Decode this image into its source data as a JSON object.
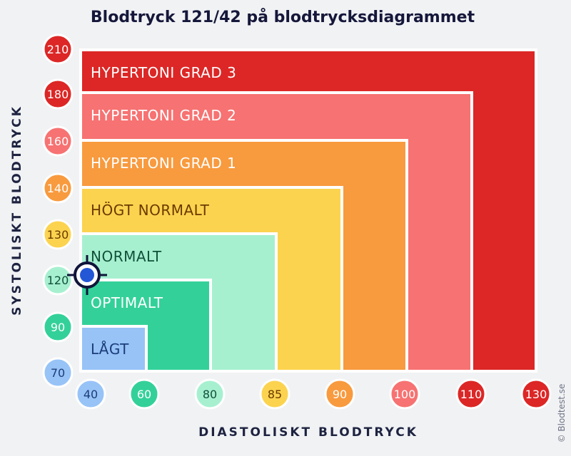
{
  "title": "Blodtryck 121/42 på blodtrycksdiagrammet",
  "credit": "© Blodtest.se",
  "chart_data": {
    "type": "area",
    "xlabel": "DIASTOLISKT BLODTRYCK",
    "ylabel": "SYSTOLISKT BLODTRYCK",
    "x_ticks": [
      {
        "label": "40",
        "color": "#97c3f7",
        "text": "#1d3d7a"
      },
      {
        "label": "60",
        "color": "#33d199",
        "text": "#ffffff"
      },
      {
        "label": "80",
        "color": "#a6f0d0",
        "text": "#11503a"
      },
      {
        "label": "85",
        "color": "#fcd34f",
        "text": "#6b3a00"
      },
      {
        "label": "90",
        "color": "#f89a3e",
        "text": "#ffffff"
      },
      {
        "label": "100",
        "color": "#f77272",
        "text": "#ffffff"
      },
      {
        "label": "110",
        "color": "#dc2726",
        "text": "#ffffff"
      },
      {
        "label": "130",
        "color": "#dc2726",
        "text": "#ffffff"
      }
    ],
    "y_ticks": [
      {
        "label": "210",
        "color": "#dc2726",
        "text": "#ffffff"
      },
      {
        "label": "180",
        "color": "#dc2726",
        "text": "#ffffff"
      },
      {
        "label": "160",
        "color": "#f77272",
        "text": "#ffffff"
      },
      {
        "label": "140",
        "color": "#f89a3e",
        "text": "#ffffff"
      },
      {
        "label": "130",
        "color": "#fcd34f",
        "text": "#6b3a00"
      },
      {
        "label": "120",
        "color": "#a6f0d0",
        "text": "#11503a"
      },
      {
        "label": "90",
        "color": "#33d199",
        "text": "#ffffff"
      },
      {
        "label": "70",
        "color": "#97c3f7",
        "text": "#1d3d7a"
      }
    ],
    "zones": [
      {
        "label": "HYPERTONI GRAD 3",
        "x_max": "130",
        "y_max": "210",
        "color": "#dc2726",
        "text": "#ffffff"
      },
      {
        "label": "HYPERTONI GRAD 2",
        "x_max": "110",
        "y_max": "180",
        "color": "#f77272",
        "text": "#ffffff"
      },
      {
        "label": "HYPERTONI GRAD 1",
        "x_max": "100",
        "y_max": "160",
        "color": "#f89a3e",
        "text": "#ffffff"
      },
      {
        "label": "HÖGT NORMALT",
        "x_max": "90",
        "y_max": "140",
        "color": "#fcd34f",
        "text": "#6b3a00"
      },
      {
        "label": "NORMALT",
        "x_max": "85",
        "y_max": "130",
        "color": "#a6f0d0",
        "text": "#11503a"
      },
      {
        "label": "OPTIMALT",
        "x_max": "80",
        "y_max": "120",
        "color": "#33d199",
        "text": "#ffffff"
      },
      {
        "label": "LÅGT",
        "x_max": "60",
        "y_max": "90",
        "color": "#97c3f7",
        "text": "#1d3d7a"
      }
    ],
    "marker": {
      "systolic": 121,
      "diastolic": 42,
      "color": "#2457d6"
    }
  }
}
